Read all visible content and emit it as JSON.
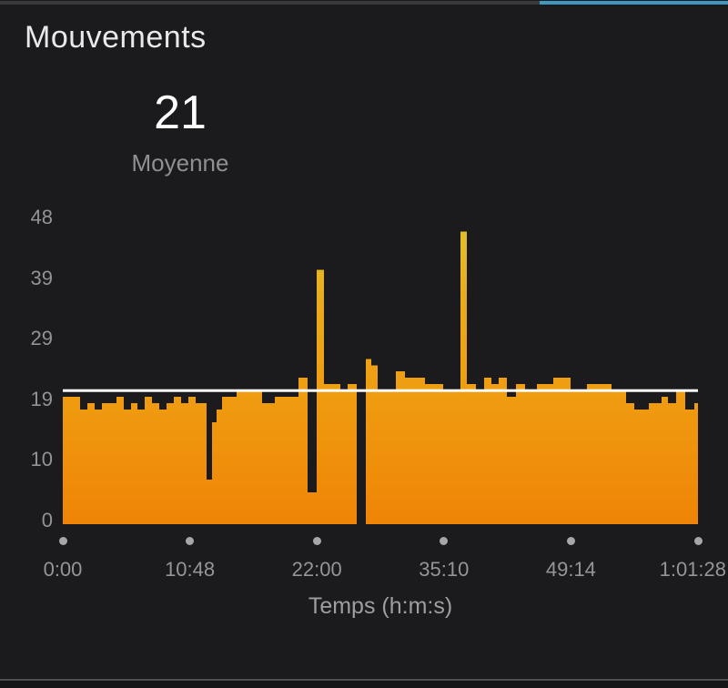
{
  "header": {
    "title": "Mouvements"
  },
  "summary": {
    "value": "21",
    "label": "Moyenne"
  },
  "colors": {
    "background": "#1b1b1d",
    "bar_gradient_top": "#e0c532",
    "bar_gradient_mid": "#efa012",
    "bar_gradient_bottom": "#ef8406",
    "average_line": "#ffffff",
    "tick_text": "#939395",
    "scroll_track": "#39393b",
    "scroll_thumb": "#3f97c2"
  },
  "chart_data": {
    "type": "bar",
    "title": "Mouvements",
    "xlabel": "Temps (h:m:s)",
    "ylabel": "",
    "legend": "none",
    "grid": false,
    "average": 21,
    "average_line_value": 21,
    "ylim": [
      0,
      49.5
    ],
    "y_ticks": [
      "0",
      "10",
      "19",
      "29",
      "39",
      "48"
    ],
    "x_ticks": [
      "0:00",
      "10:48",
      "22:00",
      "35:10",
      "49:14",
      "1:01:28"
    ],
    "bars_note": "Run-length encoded buckets across the time axis: [pixel_width, movements_value]; values estimated from axis scale",
    "bars": [
      [
        19,
        20
      ],
      [
        8,
        18
      ],
      [
        8,
        19
      ],
      [
        8,
        18
      ],
      [
        16,
        19
      ],
      [
        8,
        20
      ],
      [
        8,
        18
      ],
      [
        7,
        19
      ],
      [
        8,
        18
      ],
      [
        8,
        20
      ],
      [
        8,
        19
      ],
      [
        8,
        18
      ],
      [
        8,
        19
      ],
      [
        8,
        20
      ],
      [
        8,
        19
      ],
      [
        8,
        20
      ],
      [
        12,
        19
      ],
      [
        6,
        7
      ],
      [
        5,
        16
      ],
      [
        6,
        18
      ],
      [
        16,
        20
      ],
      [
        28,
        21
      ],
      [
        14,
        19
      ],
      [
        26,
        20
      ],
      [
        10,
        23
      ],
      [
        10,
        5
      ],
      [
        8,
        40
      ],
      [
        18,
        22
      ],
      [
        8,
        21
      ],
      [
        10,
        22
      ],
      [
        10,
        0
      ],
      [
        6,
        26
      ],
      [
        7,
        25
      ],
      [
        20,
        21
      ],
      [
        10,
        24
      ],
      [
        10,
        23
      ],
      [
        12,
        23
      ],
      [
        20,
        22
      ],
      [
        19,
        21
      ],
      [
        7,
        46
      ],
      [
        10,
        22
      ],
      [
        9,
        21
      ],
      [
        8,
        23
      ],
      [
        8,
        22
      ],
      [
        9,
        23
      ],
      [
        10,
        20
      ],
      [
        10,
        22
      ],
      [
        13,
        21
      ],
      [
        18,
        22
      ],
      [
        19,
        23
      ],
      [
        18,
        21
      ],
      [
        27,
        22
      ],
      [
        16,
        21
      ],
      [
        9,
        19
      ],
      [
        16,
        18
      ],
      [
        14,
        19
      ],
      [
        7,
        20
      ],
      [
        9,
        19
      ],
      [
        10,
        21
      ],
      [
        10,
        18
      ],
      [
        4,
        19
      ]
    ]
  }
}
